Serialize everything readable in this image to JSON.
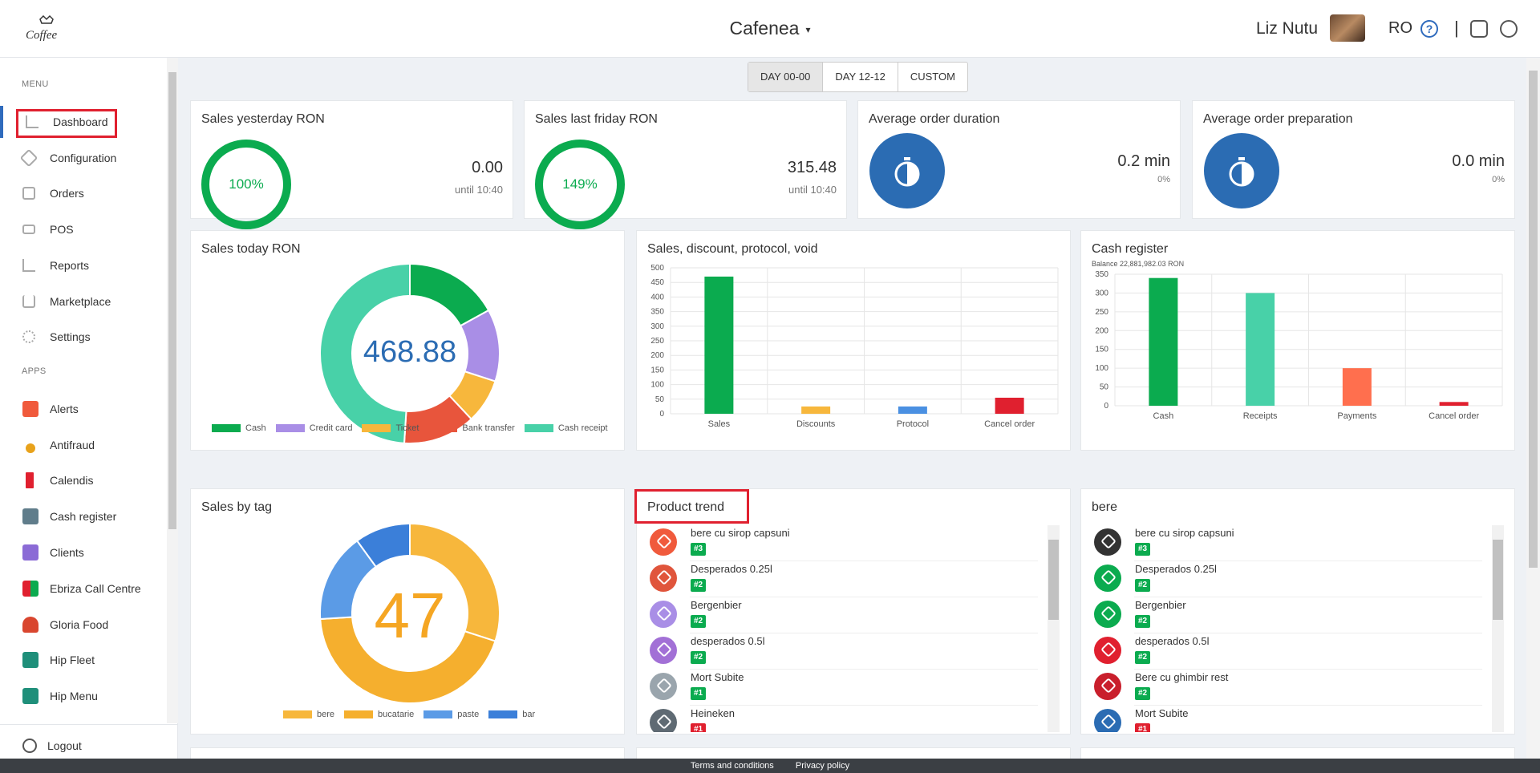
{
  "header": {
    "venue": "Cafenea",
    "venue_caret": "▾",
    "user": "Liz Nutu",
    "language": "RO",
    "help": "?",
    "separator": "|"
  },
  "sidebar": {
    "menu_heading": "MENU",
    "apps_heading": "APPS",
    "menu": [
      {
        "label": "Dashboard",
        "icon": "bar-chart-icon"
      },
      {
        "label": "Configuration",
        "icon": "tag-icon"
      },
      {
        "label": "Orders",
        "icon": "bag-icon"
      },
      {
        "label": "POS",
        "icon": "monitor-icon"
      },
      {
        "label": "Reports",
        "icon": "report-icon"
      },
      {
        "label": "Marketplace",
        "icon": "cart-icon"
      },
      {
        "label": "Settings",
        "icon": "gear-icon"
      }
    ],
    "apps": [
      {
        "label": "Alerts",
        "color": "#f05a3c"
      },
      {
        "label": "Antifraud",
        "color": "#e8a21b"
      },
      {
        "label": "Calendis",
        "color": "#e0202f"
      },
      {
        "label": "Cash register",
        "color": "#607d8b"
      },
      {
        "label": "Clients",
        "color": "#8b6bd6"
      },
      {
        "label": "Ebriza Call Centre",
        "color": "#e0202f"
      },
      {
        "label": "Gloria Food",
        "color": "#d9462f"
      },
      {
        "label": "Hip Fleet",
        "color": "#1f8f7a"
      },
      {
        "label": "Hip Menu",
        "color": "#1f8f7a"
      }
    ],
    "logout": "Logout"
  },
  "tabs": [
    "DAY 00-00",
    "DAY 12-12",
    "CUSTOM"
  ],
  "stats": {
    "sales_yesterday": {
      "title": "Sales yesterday RON",
      "percent": "100%",
      "value": "0.00",
      "note": "until 10:40"
    },
    "sales_last_friday": {
      "title": "Sales last friday RON",
      "percent": "149%",
      "value": "315.48",
      "note": "until 10:40"
    },
    "avg_order_duration": {
      "title": "Average order duration",
      "value": "0.2 min",
      "note": "0%"
    },
    "avg_order_preparation": {
      "title": "Average order preparation",
      "value": "0.0 min",
      "note": "0%"
    }
  },
  "sales_today": {
    "title": "Sales today RON",
    "center": "468.88",
    "chart_data": {
      "type": "pie",
      "labels": [
        "Cash",
        "Credit card",
        "Ticket",
        "Bank transfer",
        "Cash receipt"
      ],
      "values": [
        17,
        13,
        8,
        13,
        49
      ],
      "colors": [
        "#0bab4f",
        "#a98ee6",
        "#f7b73c",
        "#e8553c",
        "#48d1a8"
      ]
    }
  },
  "sales_discount": {
    "title": "Sales, discount, protocol, void",
    "chart_data": {
      "type": "bar",
      "categories": [
        "Sales",
        "Discounts",
        "Protocol",
        "Cancel order"
      ],
      "values": [
        470,
        25,
        25,
        55
      ],
      "colors": [
        "#0bab4f",
        "#f7b73c",
        "#4a90e2",
        "#e0202f"
      ],
      "ylim": [
        0,
        500
      ],
      "yticks": [
        "0",
        "50",
        "100",
        "150",
        "200",
        "250",
        "300",
        "350",
        "400",
        "450",
        "500"
      ]
    }
  },
  "cash_register": {
    "title": "Cash register",
    "subtitle": "Balance 22,881,982.03 RON",
    "chart_data": {
      "type": "bar",
      "categories": [
        "Cash",
        "Receipts",
        "Payments",
        "Cancel order"
      ],
      "values": [
        340,
        300,
        100,
        10
      ],
      "colors": [
        "#0bab4f",
        "#48d1a8",
        "#ff6f4e",
        "#e0202f"
      ],
      "ylim": [
        0,
        350
      ],
      "yticks": [
        "0",
        "50",
        "100",
        "150",
        "200",
        "250",
        "300",
        "350"
      ]
    }
  },
  "sales_by_tag": {
    "title": "Sales by tag",
    "center": "47",
    "chart_data": {
      "type": "pie",
      "labels": [
        "bere",
        "bucatarie",
        "paste",
        "bar"
      ],
      "values": [
        30,
        44,
        16,
        10
      ],
      "colors": [
        "#f7b73c",
        "#f5af2e",
        "#5b9be6",
        "#3b7fd9"
      ]
    }
  },
  "product_trend": {
    "title": "Product trend",
    "items": [
      {
        "name": "bere cu sirop capsuni",
        "badge": "#3",
        "color": "#f05a3c",
        "red": false
      },
      {
        "name": "Desperados 0.25l",
        "badge": "#2",
        "color": "#e0553c",
        "red": false
      },
      {
        "name": "Bergenbier",
        "badge": "#2",
        "color": "#a98ee6",
        "red": false
      },
      {
        "name": "desperados 0.5l",
        "badge": "#2",
        "color": "#a270d6",
        "red": false
      },
      {
        "name": "Mort Subite",
        "badge": "#1",
        "color": "#9aa5ad",
        "red": false
      },
      {
        "name": "Heineken",
        "badge": "#1",
        "color": "#5f6a73",
        "red": true
      }
    ]
  },
  "bere": {
    "title": "bere",
    "items": [
      {
        "name": "bere cu sirop capsuni",
        "badge": "#3",
        "color": "#333333",
        "red": false
      },
      {
        "name": "Desperados 0.25l",
        "badge": "#2",
        "color": "#0bab4f",
        "red": false
      },
      {
        "name": "Bergenbier",
        "badge": "#2",
        "color": "#0bab4f",
        "red": false
      },
      {
        "name": "desperados 0.5l",
        "badge": "#2",
        "color": "#e0202f",
        "red": false
      },
      {
        "name": "Bere cu ghimbir rest",
        "badge": "#2",
        "color": "#c91f2c",
        "red": false
      },
      {
        "name": "Mort Subite",
        "badge": "#1",
        "color": "#2b6cb3",
        "red": true
      }
    ]
  },
  "footer": {
    "terms": "Terms and conditions",
    "privacy": "Privacy policy"
  }
}
